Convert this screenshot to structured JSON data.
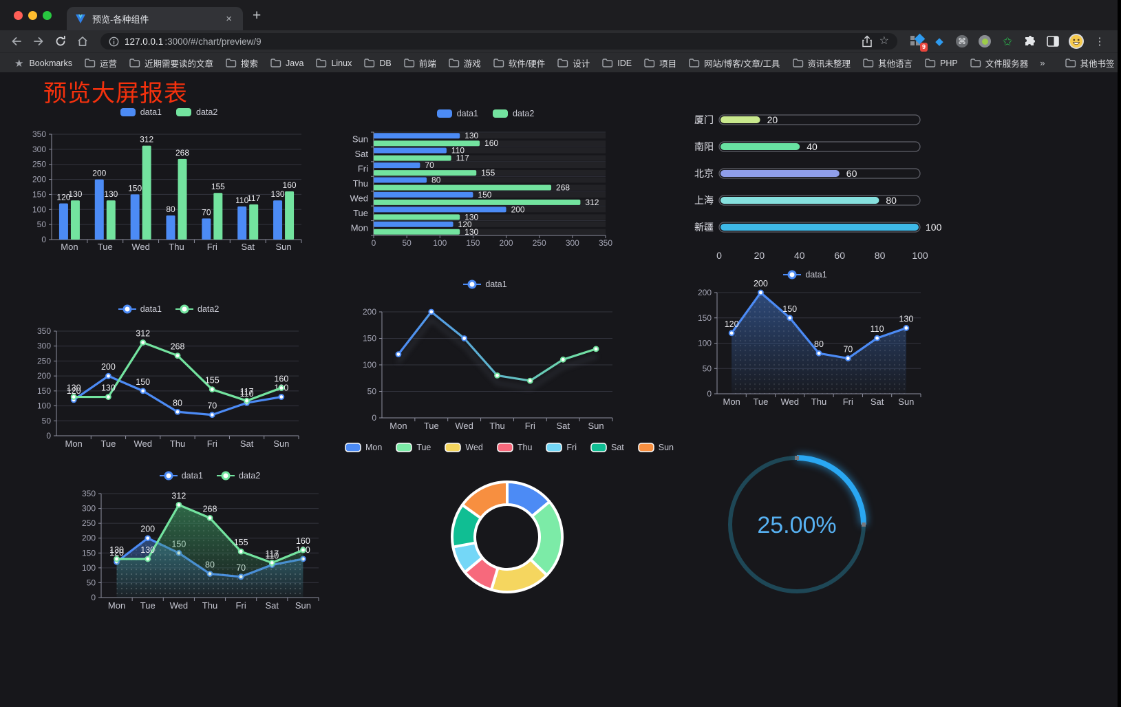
{
  "browser": {
    "tab": {
      "title": "预览-各种组件",
      "close_glyph": "×",
      "new_tab_glyph": "+"
    },
    "url": {
      "host": "127.0.0.1",
      "rest": ":3000/#/chart/preview/9"
    },
    "extension_badge": "9",
    "bookmarks_label": "Bookmarks",
    "bookmarks": [
      "运营",
      "近期需要读的文章",
      "搜索",
      "Java",
      "Linux",
      "DB",
      "前端",
      "游戏",
      "软件/硬件",
      "设计",
      "IDE",
      "项目",
      "网站/博客/文章/工具",
      "资讯未整理",
      "其他语言",
      "PHP",
      "文件服务器"
    ],
    "overflow_glyph": "»",
    "other_bookmarks": "其他书签",
    "cmd_glyph": "⌘",
    "menu_glyph": "⋮",
    "gem_glyph": "◆",
    "green_star_glyph": "✩",
    "star_glyph": "☆",
    "bm_star_glyph": "★"
  },
  "page": {
    "title": "预览大屏报表",
    "title_color": "#F5310D"
  },
  "chart_data": [
    {
      "id": "bar-vertical",
      "type": "bar",
      "categories": [
        "Mon",
        "Tue",
        "Wed",
        "Thu",
        "Fri",
        "Sat",
        "Sun"
      ],
      "series": [
        {
          "name": "data1",
          "color": "#4C8BF5",
          "values": [
            120,
            200,
            150,
            80,
            70,
            110,
            130
          ]
        },
        {
          "name": "data2",
          "color": "#73E39F",
          "values": [
            130,
            130,
            312,
            268,
            155,
            117,
            160
          ]
        }
      ],
      "ylim": [
        0,
        350
      ],
      "ytick_step": 50,
      "labels": true,
      "legend_position": "top",
      "grid": true
    },
    {
      "id": "bar-horizontal",
      "type": "hbar",
      "categories": [
        "Mon",
        "Tue",
        "Wed",
        "Thu",
        "Fri",
        "Sat",
        "Sun"
      ],
      "display_order_top_to_bottom": [
        "Sun",
        "Sat",
        "Fri",
        "Thu",
        "Wed",
        "Tue",
        "Mon"
      ],
      "series": [
        {
          "name": "data1",
          "color": "#4C8BF5",
          "values": [
            120,
            200,
            150,
            80,
            70,
            110,
            130
          ]
        },
        {
          "name": "data2",
          "color": "#73E39F",
          "values": [
            130,
            130,
            312,
            268,
            155,
            117,
            160
          ]
        }
      ],
      "xlim": [
        0,
        350
      ],
      "xtick_step": 50,
      "labels": true,
      "legend_position": "top",
      "grid": true
    },
    {
      "id": "city-progress",
      "type": "bar",
      "subtype": "progress-bars",
      "items": [
        {
          "label": "厦门",
          "value": 20,
          "color": "#C9E88D"
        },
        {
          "label": "南阳",
          "value": 40,
          "color": "#68E2A2"
        },
        {
          "label": "北京",
          "value": 60,
          "color": "#8F9EEA"
        },
        {
          "label": "上海",
          "value": 80,
          "color": "#86E0DE"
        },
        {
          "label": "新疆",
          "value": 100,
          "color": "#3EB9E8"
        }
      ],
      "xlim": [
        0,
        100
      ],
      "xticks": [
        0,
        20,
        40,
        60,
        80,
        100
      ]
    },
    {
      "id": "line-two-series",
      "type": "line",
      "categories": [
        "Mon",
        "Tue",
        "Wed",
        "Thu",
        "Fri",
        "Sat",
        "Sun"
      ],
      "series": [
        {
          "name": "data1",
          "color": "#4C8BF5",
          "values": [
            120,
            200,
            150,
            80,
            70,
            110,
            130
          ]
        },
        {
          "name": "data2",
          "color": "#73E39F",
          "values": [
            130,
            130,
            312,
            268,
            155,
            117,
            160
          ]
        }
      ],
      "ylim": [
        0,
        350
      ],
      "ytick_step": 50,
      "labels": true,
      "legend_position": "top",
      "grid": true
    },
    {
      "id": "line-gradient",
      "type": "line",
      "categories": [
        "Mon",
        "Tue",
        "Wed",
        "Thu",
        "Fri",
        "Sat",
        "Sun"
      ],
      "series": [
        {
          "name": "data1",
          "color": "#4C8BF5",
          "gradient_stroke": [
            "#4C8BF5",
            "#73E39F"
          ],
          "shadow": true,
          "values": [
            120,
            200,
            150,
            80,
            70,
            110,
            130
          ]
        }
      ],
      "ylim": [
        0,
        200
      ],
      "ytick_step": 50,
      "labels": false,
      "legend_position": "top",
      "grid": true
    },
    {
      "id": "line-area-blue",
      "type": "area",
      "categories": [
        "Mon",
        "Tue",
        "Wed",
        "Thu",
        "Fri",
        "Sat",
        "Sun"
      ],
      "series": [
        {
          "name": "data1",
          "color": "#4C8BF5",
          "area": true,
          "area_color": "#3B69B4",
          "values": [
            120,
            200,
            150,
            80,
            70,
            110,
            130
          ]
        }
      ],
      "ylim": [
        0,
        200
      ],
      "ytick_step": 50,
      "labels": true,
      "legend_position": "top",
      "grid": true
    },
    {
      "id": "line-area-two",
      "type": "area",
      "categories": [
        "Mon",
        "Tue",
        "Wed",
        "Thu",
        "Fri",
        "Sat",
        "Sun"
      ],
      "series": [
        {
          "name": "data1",
          "color": "#4C8BF5",
          "area": true,
          "area_color": "#3B69B4",
          "values": [
            120,
            200,
            150,
            80,
            70,
            110,
            130
          ]
        },
        {
          "name": "data2",
          "color": "#73E39F",
          "area": true,
          "area_color": "#3C9A62",
          "values": [
            130,
            130,
            312,
            268,
            155,
            117,
            160
          ]
        }
      ],
      "ylim": [
        0,
        350
      ],
      "ytick_step": 50,
      "labels": true,
      "legend_position": "top",
      "grid": true
    },
    {
      "id": "donut",
      "type": "pie",
      "inner_radius_ratio": 0.59,
      "items": [
        {
          "label": "Mon",
          "value": 120,
          "color": "#4C8BF5"
        },
        {
          "label": "Tue",
          "value": 200,
          "color": "#7CEBA7"
        },
        {
          "label": "Wed",
          "value": 150,
          "color": "#F5D65F"
        },
        {
          "label": "Thu",
          "value": 80,
          "color": "#F7697C"
        },
        {
          "label": "Fri",
          "value": 70,
          "color": "#74D7F7"
        },
        {
          "label": "Sat",
          "value": 110,
          "color": "#10BE93"
        },
        {
          "label": "Sun",
          "value": 130,
          "color": "#F78F40"
        }
      ],
      "legend_position": "top"
    },
    {
      "id": "gauge",
      "type": "gauge",
      "percent": 25,
      "value_label": "25.00%",
      "arc_color": "#2AA7F2",
      "track_color": "#1E4756",
      "text_color": "#57B1F2"
    }
  ]
}
